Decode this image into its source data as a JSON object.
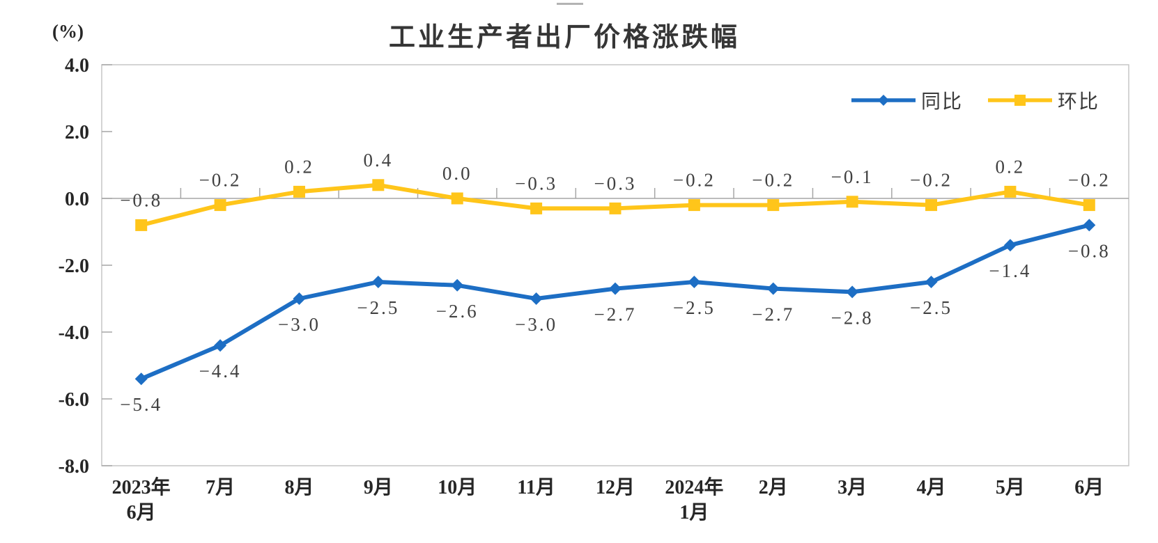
{
  "chart": {
    "title": "工业生产者出厂价格涨跌幅",
    "unit_label": "(%)"
  },
  "chart_data": {
    "type": "line",
    "title": "工业生产者出厂价格涨跌幅",
    "unit_label": "(%)",
    "categories": [
      [
        "2023年",
        "6月"
      ],
      [
        "7月"
      ],
      [
        "8月"
      ],
      [
        "9月"
      ],
      [
        "10月"
      ],
      [
        "11月"
      ],
      [
        "12月"
      ],
      [
        "2024年",
        "1月"
      ],
      [
        "2月"
      ],
      [
        "3月"
      ],
      [
        "4月"
      ],
      [
        "5月"
      ],
      [
        "6月"
      ]
    ],
    "series": [
      {
        "name": "同比",
        "marker": "diamond",
        "color": "#1D6EC4",
        "label_position": "below",
        "values": [
          -5.4,
          -4.4,
          -3.0,
          -2.5,
          -2.6,
          -3.0,
          -2.7,
          -2.5,
          -2.7,
          -2.8,
          -2.5,
          -1.4,
          -0.8
        ],
        "labels": [
          "-5.4",
          "-4.4",
          "-3.0",
          "-2.5",
          "-2.6",
          "-3.0",
          "-2.7",
          "-2.5",
          "-2.7",
          "-2.8",
          "-2.5",
          "-1.4",
          "-0.8"
        ]
      },
      {
        "name": "环比",
        "marker": "square",
        "color": "#FFC51A",
        "label_position": "above",
        "values": [
          -0.8,
          -0.2,
          0.2,
          0.4,
          0.0,
          -0.3,
          -0.3,
          -0.2,
          -0.2,
          -0.1,
          -0.2,
          0.2,
          -0.2
        ],
        "labels": [
          "-0.8",
          "-0.2",
          "0.2",
          "0.4",
          "0.0",
          "-0.3",
          "-0.3",
          "-0.2",
          "-0.2",
          "-0.1",
          "-0.2",
          "0.2",
          "-0.2"
        ]
      }
    ],
    "ylim": [
      -8.0,
      4.0
    ],
    "ytick_labels": [
      "4.0",
      "2.0",
      "0.0",
      "-2.0",
      "-4.0",
      "-6.0",
      "-8.0"
    ],
    "legend_position": "top-right",
    "grid": false,
    "colors": {
      "plot_border": "#C6C6C6",
      "zero_line": "#A6A6A6",
      "tick_text": "#262626",
      "data_label_text": "#404040",
      "title_text": "#363636",
      "background": "#FFFFFF"
    }
  }
}
